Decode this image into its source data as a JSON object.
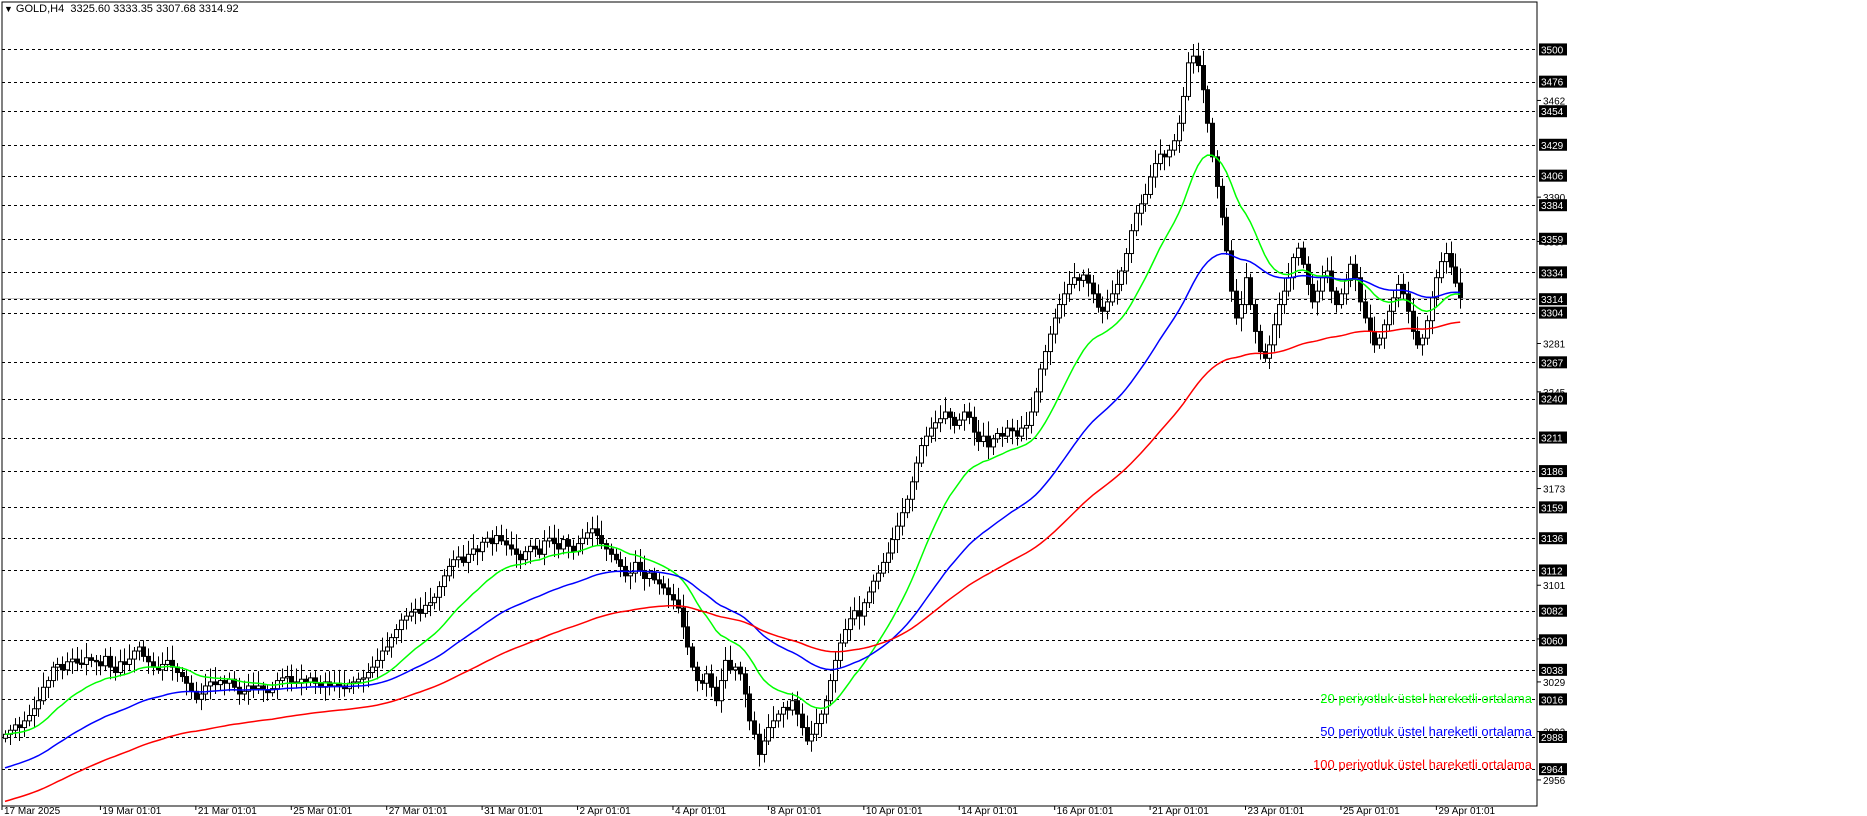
{
  "header": {
    "symbol": "GOLD,H4",
    "ohlc": "3325.60 3333.35 3307.68 3314.92"
  },
  "colors": {
    "background": "#ffffff",
    "bull_body": "#ffffff",
    "bear_body": "#000000",
    "wick": "#000000",
    "ema20": "#00ff00",
    "ema50": "#0000ff",
    "ema100": "#ff0000",
    "grid": "#000000",
    "current_price_line": "#c0c0c0"
  },
  "legend": [
    {
      "label": "20 periyotluk üstel hareketli ortalama",
      "color": "#00ff00"
    },
    {
      "label": "50 periyotluk üstel hareketli ortalama",
      "color": "#0000ff"
    },
    {
      "label": "100 periyotluk üstel hareketli ortalama",
      "color": "#ff0000"
    }
  ],
  "chart_data": {
    "type": "candlestick",
    "timeframe": "H4",
    "ylim": [
      2950,
      3510
    ],
    "grid": true,
    "legend_position": "bottom-right",
    "current_price": 3314.92,
    "x_ticks": [
      "17 Mar 2025",
      "19 Mar 01:01",
      "21 Mar 01:01",
      "25 Mar 01:01",
      "27 Mar 01:01",
      "31 Mar 01:01",
      "2 Apr 01:01",
      "4 Apr 01:01",
      "8 Apr 01:01",
      "10 Apr 01:01",
      "14 Apr 01:01",
      "16 Apr 01:01",
      "21 Apr 01:01",
      "23 Apr 01:01",
      "25 Apr 01:01",
      "29 Apr 01:01"
    ],
    "x_tick_index": [
      0,
      20,
      40,
      60,
      80,
      100,
      120,
      140,
      160,
      180,
      200,
      220,
      240,
      260,
      280,
      300
    ],
    "levels_boxed": [
      3500,
      3476,
      3454,
      3429,
      3406,
      3384,
      3359,
      3334,
      3314,
      3304,
      3267,
      3240,
      3211,
      3186,
      3159,
      3136,
      3112,
      3082,
      3060,
      3038,
      3016,
      2988,
      2964
    ],
    "levels_plain": [
      "3462",
      "3390",
      "3357",
      "3281",
      "3245",
      "3173",
      "3101",
      "3061",
      "3029",
      "2992",
      "2956"
    ],
    "price_close": [
      2990,
      2993,
      2997,
      2995,
      3000,
      3004,
      3009,
      3015,
      3025,
      3030,
      3040,
      3042,
      3038,
      3044,
      3046,
      3043,
      3042,
      3047,
      3045,
      3044,
      3041,
      3048,
      3040,
      3036,
      3044,
      3042,
      3046,
      3052,
      3055,
      3048,
      3044,
      3040,
      3038,
      3042,
      3045,
      3040,
      3036,
      3033,
      3028,
      3022,
      3016,
      3020,
      3026,
      3029,
      3027,
      3030,
      3028,
      3031,
      3025,
      3020,
      3022,
      3026,
      3024,
      3026,
      3023,
      3021,
      3024,
      3030,
      3032,
      3033,
      3029,
      3028,
      3031,
      3029,
      3032,
      3028,
      3025,
      3029,
      3026,
      3028,
      3026,
      3024,
      3028,
      3029,
      3031,
      3032,
      3036,
      3040,
      3045,
      3052,
      3055,
      3062,
      3068,
      3075,
      3078,
      3081,
      3083,
      3080,
      3086,
      3088,
      3092,
      3100,
      3108,
      3115,
      3120,
      3122,
      3118,
      3124,
      3128,
      3126,
      3133,
      3136,
      3132,
      3138,
      3134,
      3131,
      3128,
      3124,
      3120,
      3126,
      3130,
      3128,
      3124,
      3134,
      3136,
      3132,
      3128,
      3135,
      3130,
      3126,
      3132,
      3136,
      3140,
      3143,
      3138,
      3132,
      3128,
      3124,
      3120,
      3115,
      3108,
      3110,
      3118,
      3112,
      3106,
      3110,
      3105,
      3102,
      3099,
      3094,
      3090,
      3084,
      3070,
      3055,
      3040,
      3030,
      3028,
      3035,
      3025,
      3015,
      3030,
      3045,
      3038,
      3040,
      3035,
      3020,
      3000,
      2990,
      2975,
      2985,
      2995,
      3000,
      3005,
      3010,
      3008,
      3015,
      3005,
      2995,
      2985,
      2990,
      2998,
      3005,
      3015,
      3030,
      3045,
      3058,
      3068,
      3076,
      3082,
      3078,
      3088,
      3096,
      3104,
      3110,
      3118,
      3125,
      3135,
      3145,
      3155,
      3165,
      3178,
      3192,
      3205,
      3212,
      3218,
      3222,
      3225,
      3230,
      3226,
      3220,
      3224,
      3230,
      3226,
      3215,
      3208,
      3212,
      3204,
      3210,
      3214,
      3212,
      3218,
      3216,
      3212,
      3218,
      3220,
      3230,
      3245,
      3262,
      3275,
      3288,
      3300,
      3310,
      3318,
      3325,
      3330,
      3328,
      3332,
      3326,
      3318,
      3308,
      3305,
      3312,
      3318,
      3325,
      3335,
      3348,
      3365,
      3378,
      3385,
      3392,
      3405,
      3415,
      3422,
      3420,
      3425,
      3432,
      3445,
      3465,
      3490,
      3495,
      3488,
      3470,
      3445,
      3420,
      3398,
      3375,
      3350,
      3320,
      3300,
      3310,
      3330,
      3310,
      3290,
      3275,
      3270,
      3280,
      3295,
      3310,
      3320,
      3330,
      3345,
      3352,
      3340,
      3325,
      3312,
      3320,
      3330,
      3335,
      3320,
      3310,
      3318,
      3328,
      3340,
      3330,
      3312,
      3300,
      3290,
      3280,
      3285,
      3295,
      3305,
      3315,
      3325,
      3318,
      3305,
      3290,
      3280,
      3285,
      3298,
      3315,
      3330,
      3342,
      3348,
      3338,
      3326,
      3315
    ]
  }
}
